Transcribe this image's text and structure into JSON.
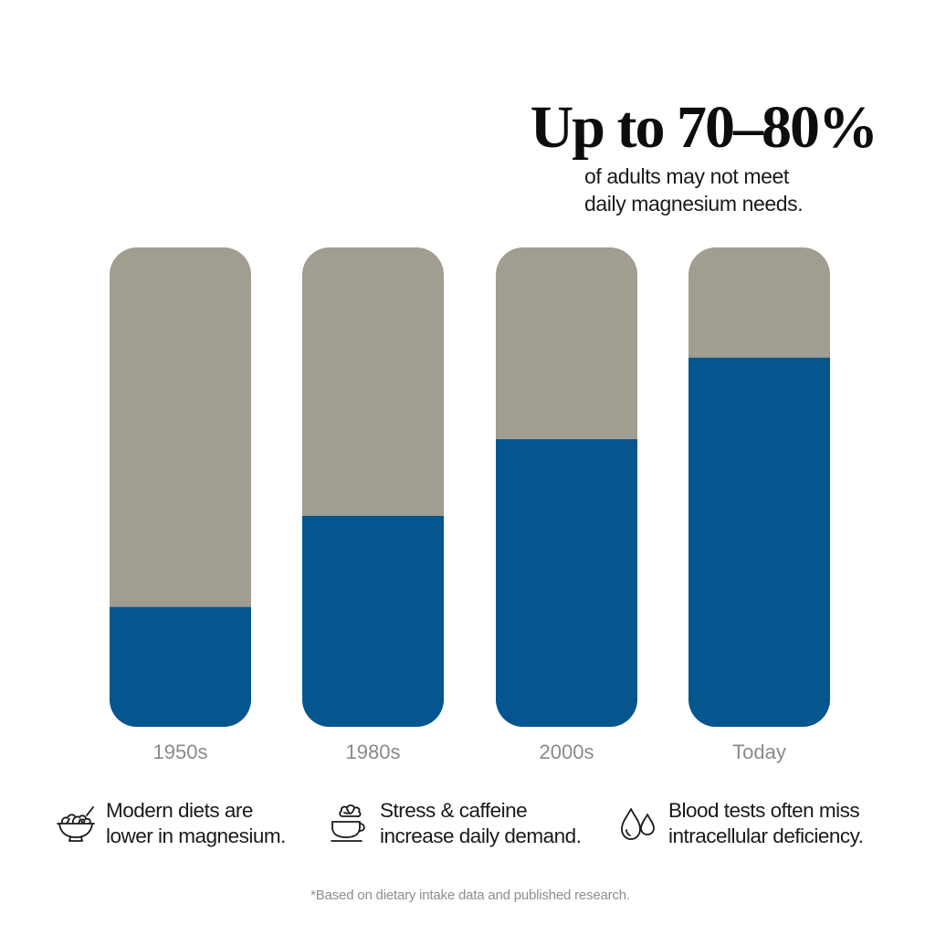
{
  "header": {
    "headline": "Up to 70–80%",
    "subline_1": "of adults may not meet",
    "subline_2": "daily magnesium needs."
  },
  "colors": {
    "filled": "#05568f",
    "remaining": "#a19d91",
    "label": "#8a8a8a"
  },
  "chart_data": {
    "type": "bar",
    "stacked": true,
    "categories": [
      "1950s",
      "1980s",
      "2000s",
      "Today"
    ],
    "values": [
      25,
      44,
      60,
      77
    ],
    "ylim": [
      0,
      100
    ],
    "grid": false,
    "legend": "none",
    "xlabel": "",
    "ylabel": "",
    "title": ""
  },
  "features": [
    {
      "icon": "salad-bowl-icon",
      "line1": "Modern diets are",
      "line2": "lower in magnesium."
    },
    {
      "icon": "brain-cup-icon",
      "line1": "Stress & caffeine",
      "line2": "increase daily demand."
    },
    {
      "icon": "water-drops-icon",
      "line1": "Blood tests often miss",
      "line2": "intracellular deficiency."
    }
  ],
  "footnote": "*Based on dietary intake data and published research."
}
